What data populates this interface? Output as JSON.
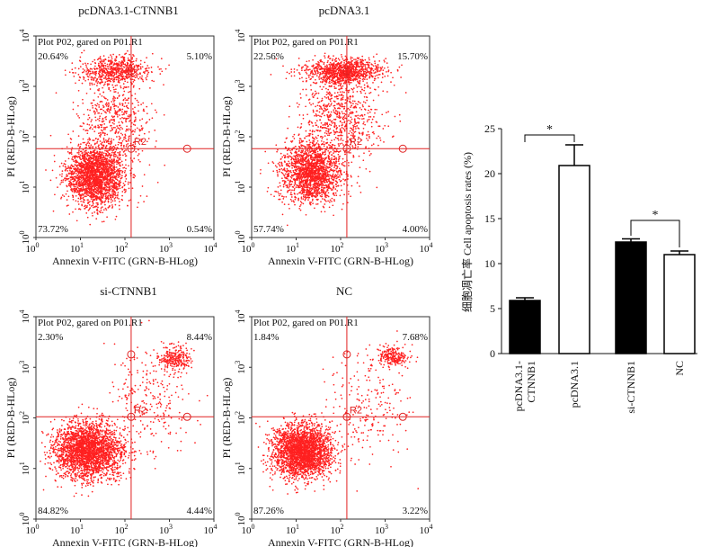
{
  "chart_data": [
    {
      "type": "scatter",
      "title": "pcDNA3.1-CTNNB1",
      "subtitle": "Plot P02, gared on P01.R1",
      "xlabel": "Annexin V-FITC (GRN-B-HLog)",
      "ylabel": "PI (RED-B-HLog)",
      "x_scale": "log",
      "y_scale": "log",
      "xlim": [
        1,
        10000
      ],
      "ylim": [
        1,
        10000
      ],
      "x_ticks": [
        "10",
        "10",
        "10",
        "10",
        "10"
      ],
      "x_tick_exponents": [
        "0",
        "1",
        "2",
        "3",
        "4"
      ],
      "y_ticks": [
        "10",
        "10",
        "10",
        "10",
        "10"
      ],
      "y_tick_exponents": [
        "0",
        "1",
        "2",
        "3",
        "4"
      ],
      "gate_label": "R2",
      "gate": {
        "x": 138,
        "y": 58
      },
      "quadrants": {
        "top_left": "20.64%",
        "top_right": "5.10%",
        "bottom_left": "73.72%",
        "bottom_right": "0.54%"
      },
      "point_color": "#ff2020",
      "populations": [
        {
          "cx": 22,
          "cy": 17,
          "sx": 0.32,
          "sy": 0.3,
          "n": 2200
        },
        {
          "cx": 60,
          "cy": 2000,
          "sx": 0.42,
          "sy": 0.14,
          "n": 650
        },
        {
          "cx": 60,
          "cy": 220,
          "sx": 0.4,
          "sy": 0.4,
          "n": 500
        }
      ]
    },
    {
      "type": "scatter",
      "title": "pcDNA3.1",
      "subtitle": "Plot P02, gared on P01.R1",
      "xlabel": "Annexin V-FITC (GRN-B-HLog)",
      "ylabel": "PI (RED-B-HLog)",
      "x_scale": "log",
      "y_scale": "log",
      "xlim": [
        1,
        10000
      ],
      "ylim": [
        1,
        10000
      ],
      "x_ticks": [
        "10",
        "10",
        "10",
        "10",
        "10"
      ],
      "x_tick_exponents": [
        "0",
        "1",
        "2",
        "3",
        "4"
      ],
      "y_ticks": [
        "10",
        "10",
        "10",
        "10",
        "10"
      ],
      "y_tick_exponents": [
        "0",
        "1",
        "2",
        "3",
        "4"
      ],
      "gate_label": "R2",
      "gate": {
        "x": 138,
        "y": 58
      },
      "quadrants": {
        "top_left": "22.56%",
        "top_right": "15.70%",
        "bottom_left": "57.74%",
        "bottom_right": "4.00%"
      },
      "point_color": "#ff2020",
      "populations": [
        {
          "cx": 22,
          "cy": 20,
          "sx": 0.34,
          "sy": 0.3,
          "n": 1800
        },
        {
          "cx": 120,
          "cy": 2000,
          "sx": 0.45,
          "sy": 0.13,
          "n": 1000
        },
        {
          "cx": 100,
          "cy": 250,
          "sx": 0.45,
          "sy": 0.42,
          "n": 700
        }
      ]
    },
    {
      "type": "scatter",
      "title": "si-CTNNB1",
      "subtitle": "Plot P02, gared on P01.R1",
      "xlabel": "Annexin V-FITC (GRN-B-HLog)",
      "ylabel": "PI (RED-B-HLog)",
      "x_scale": "log",
      "y_scale": "log",
      "xlim": [
        1,
        10000
      ],
      "ylim": [
        1,
        10000
      ],
      "x_ticks": [
        "10",
        "10",
        "10",
        "10",
        "10"
      ],
      "x_tick_exponents": [
        "0",
        "1",
        "2",
        "3",
        "4"
      ],
      "y_ticks": [
        "10",
        "10",
        "10",
        "10",
        "10"
      ],
      "y_tick_exponents": [
        "0",
        "1",
        "2",
        "3",
        "4"
      ],
      "gate_label": "R2",
      "gate": {
        "x": 138,
        "y": 105
      },
      "quadrants": {
        "top_left": "2.30%",
        "top_right": "8.44%",
        "bottom_left": "84.82%",
        "bottom_right": "4.44%"
      },
      "point_color": "#ff2020",
      "populations": [
        {
          "cx": 15,
          "cy": 22,
          "sx": 0.38,
          "sy": 0.28,
          "n": 2600
        },
        {
          "cx": 1400,
          "cy": 1500,
          "sx": 0.18,
          "sy": 0.12,
          "n": 260
        },
        {
          "cx": 400,
          "cy": 200,
          "sx": 0.45,
          "sy": 0.55,
          "n": 250
        }
      ]
    },
    {
      "type": "scatter",
      "title": "NC",
      "subtitle": "Plot P02, gared on P01.R1",
      "xlabel": "Annexin V-FITC (GRN-B-HLog)",
      "ylabel": "PI (RED-B-HLog)",
      "x_scale": "log",
      "y_scale": "log",
      "xlim": [
        1,
        10000
      ],
      "ylim": [
        1,
        10000
      ],
      "x_ticks": [
        "10",
        "10",
        "10",
        "10",
        "10"
      ],
      "x_tick_exponents": [
        "0",
        "1",
        "2",
        "3",
        "4"
      ],
      "y_ticks": [
        "10",
        "10",
        "10",
        "10",
        "10"
      ],
      "y_tick_exponents": [
        "0",
        "1",
        "2",
        "3",
        "4"
      ],
      "gate_label": "R2",
      "gate": {
        "x": 138,
        "y": 105
      },
      "quadrants": {
        "top_left": "1.84%",
        "top_right": "7.68%",
        "bottom_left": "87.26%",
        "bottom_right": "3.22%"
      },
      "point_color": "#ff2020",
      "populations": [
        {
          "cx": 14,
          "cy": 22,
          "sx": 0.33,
          "sy": 0.26,
          "n": 2600
        },
        {
          "cx": 1500,
          "cy": 1600,
          "sx": 0.18,
          "sy": 0.1,
          "n": 240
        },
        {
          "cx": 400,
          "cy": 200,
          "sx": 0.45,
          "sy": 0.55,
          "n": 220
        }
      ]
    },
    {
      "type": "bar",
      "title": "",
      "categories": [
        "pcDNA3.1-\nCTNNB1",
        "pcDNA3.1",
        "si-CTNNB1",
        "NC"
      ],
      "values": [
        5.9,
        20.9,
        12.4,
        11.0
      ],
      "errors": [
        0.3,
        2.3,
        0.35,
        0.4
      ],
      "fills": [
        "#000000",
        "#ffffff",
        "#000000",
        "#ffffff"
      ],
      "xlabel": "",
      "ylabel": "细胞凋亡率 Cell apoptosis rates (%)",
      "ylim": [
        0,
        25
      ],
      "y_ticks": [
        "0",
        "5",
        "10",
        "15",
        "20",
        "25"
      ],
      "significance": [
        {
          "from": 0,
          "to": 1,
          "label": "*"
        },
        {
          "from": 2,
          "to": 3,
          "label": "*"
        }
      ]
    }
  ]
}
